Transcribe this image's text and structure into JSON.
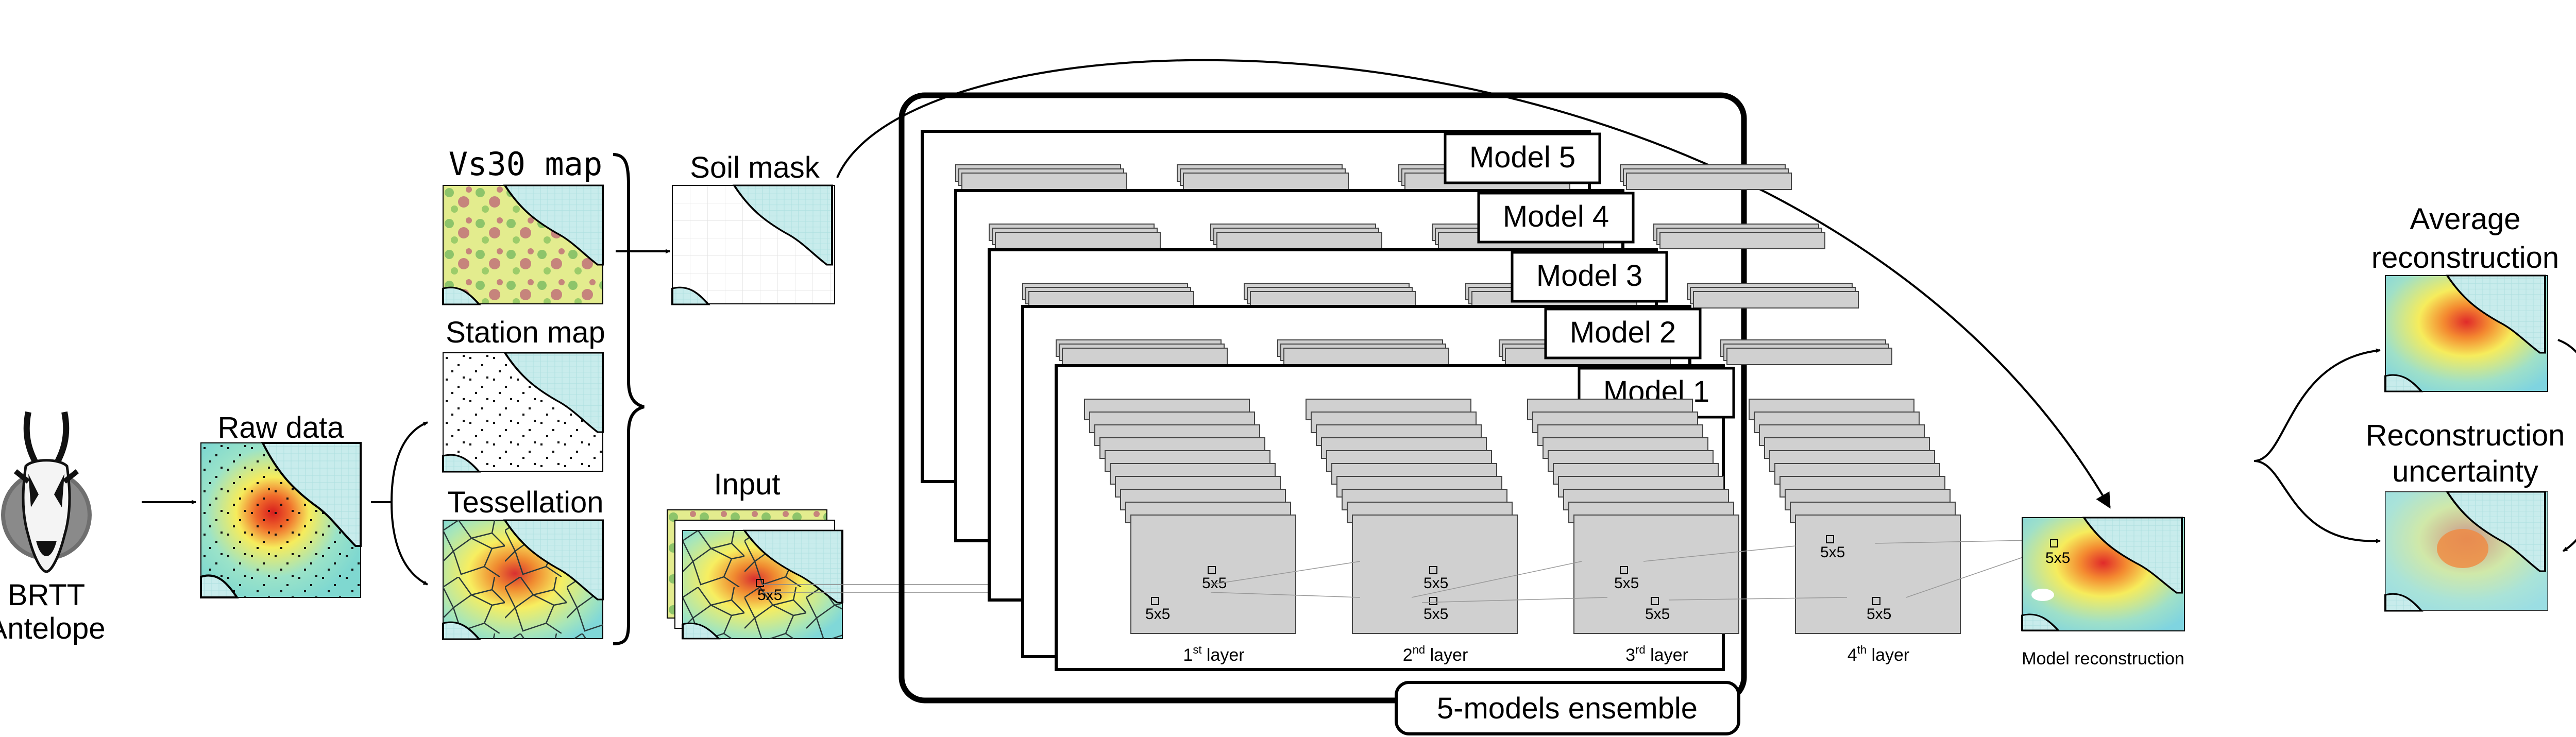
{
  "labels": {
    "antelope_line1": "BRTT",
    "antelope_line2": "Antelope",
    "raw_data": "Raw data",
    "vs30_map": "Vs30 map",
    "station_map": "Station map",
    "tessellation": "Tessellation",
    "soil_mask": "Soil mask",
    "input": "Input",
    "ensemble": "5-models ensemble",
    "model_reconstruction": "Model reconstruction",
    "average_line1": "Average",
    "average_line2": "reconstruction",
    "uncertainty_line1": "Reconstruction",
    "uncertainty_line2": "uncertainty",
    "kernel": "5x5"
  },
  "models": [
    "Model 5",
    "Model 4",
    "Model 3",
    "Model 2",
    "Model 1"
  ],
  "layers": [
    {
      "num": "1",
      "sup": "st",
      "word": "layer"
    },
    {
      "num": "2",
      "sup": "nd",
      "word": "layer"
    },
    {
      "num": "3",
      "sup": "rd",
      "word": "layer"
    },
    {
      "num": "4",
      "sup": "th",
      "word": "layer"
    }
  ],
  "colors": {
    "sea": "#c8ecec",
    "heat_low": "#9be3c8",
    "heat_mid": "#f6ec5c",
    "heat_high": "#e84a2a",
    "layer_fill": "#d0d0d0",
    "layer_stroke": "#444444"
  }
}
